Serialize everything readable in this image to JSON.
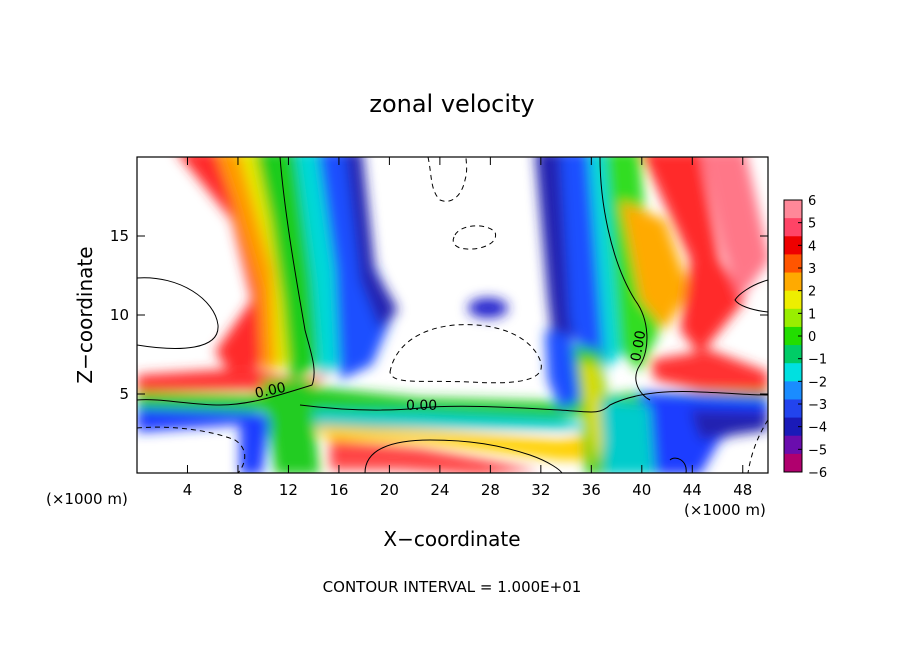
{
  "chart_data": {
    "type": "heatmap",
    "title": "zonal velocity",
    "xlabel": "X−coordinate",
    "ylabel": "Z−coordinate",
    "x_unit_left": "(×1000 m)",
    "x_unit_right": "(×1000 m)",
    "xlim": [
      0,
      50
    ],
    "ylim": [
      0,
      20
    ],
    "x_ticks": [
      4,
      8,
      12,
      16,
      20,
      24,
      28,
      32,
      36,
      40,
      44,
      48
    ],
    "x_tick_labels": [
      "4",
      "8",
      "12",
      "16",
      "20",
      "24",
      "28",
      "32",
      "36",
      "40",
      "44",
      "48"
    ],
    "y_ticks": [
      5,
      10,
      15
    ],
    "y_tick_labels": [
      "5",
      "10",
      "15"
    ],
    "colorbar": {
      "min": -6,
      "max": 6,
      "levels": [
        6,
        5,
        4,
        3,
        2,
        1,
        0,
        -1,
        -2,
        -3,
        -4,
        -5,
        -6
      ],
      "level_labels": [
        "6",
        "5",
        "4",
        "3",
        "2",
        "1",
        "0",
        "−1",
        "−2",
        "−3",
        "−4",
        "−5",
        "−6"
      ],
      "colors": [
        "#b0006e",
        "#6a0dad",
        "#1a1ab8",
        "#2244ee",
        "#1a8cff",
        "#00e0e0",
        "#00cc66",
        "#22dd00",
        "#99ee00",
        "#eeee00",
        "#ffaa00",
        "#ff5500",
        "#ee0000",
        "#ff4466",
        "#ff8899"
      ]
    },
    "contour_labels": [
      {
        "text": "0.00",
        "x": 11.2,
        "y": 5.3
      },
      {
        "text": "0.00",
        "x": 23.0,
        "y": 4.4
      },
      {
        "text": "0.00",
        "x": 40.0,
        "y": 8.3
      }
    ],
    "annotation": "CONTOUR INTERVAL = 1.000E+01"
  }
}
